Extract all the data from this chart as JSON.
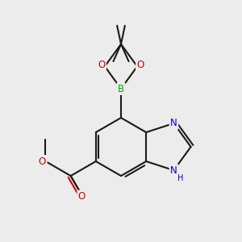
{
  "background_color": "#ececec",
  "bond_color": "#1a1a1a",
  "bond_lw": 1.5,
  "atom_colors": {
    "N": "#0000cc",
    "O": "#cc0000",
    "B": "#00aa00",
    "C": "#1a1a1a"
  },
  "font_size": 8.5
}
